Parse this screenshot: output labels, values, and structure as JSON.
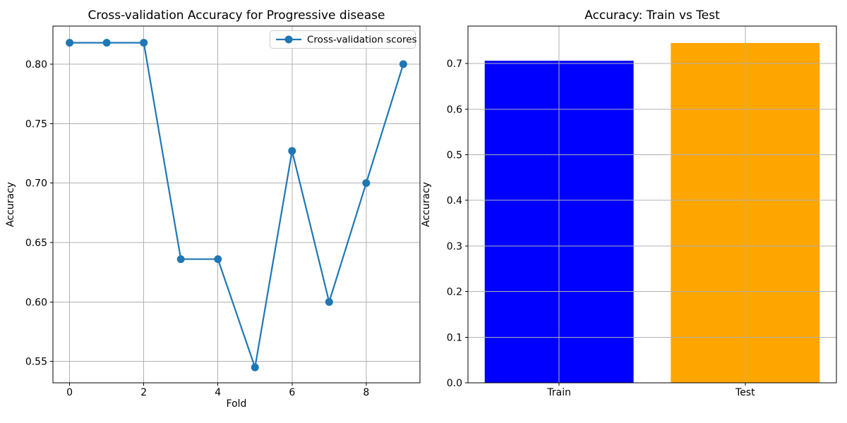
{
  "figure": {
    "background": "#ffffff",
    "axes_background": "#ffffff",
    "grid_color": "#b0b0b0",
    "spine_color": "#000000"
  },
  "chart_data": [
    {
      "type": "line",
      "title": "Cross-validation Accuracy for Progressive disease",
      "xlabel": "Fold",
      "ylabel": "Accuracy",
      "x": [
        0,
        1,
        2,
        3,
        4,
        5,
        6,
        7,
        8,
        9
      ],
      "series": [
        {
          "name": "Cross-validation scores",
          "color": "#1f77b4",
          "marker": "circle",
          "values": [
            0.818,
            0.818,
            0.818,
            0.636,
            0.636,
            0.545,
            0.727,
            0.6,
            0.7,
            0.8
          ]
        }
      ],
      "xlim": [
        -0.45,
        9.45
      ],
      "ylim": [
        0.532,
        0.832
      ],
      "xticks": [
        0,
        2,
        4,
        6,
        8
      ],
      "xtick_labels": [
        "0",
        "2",
        "4",
        "6",
        "8"
      ],
      "yticks": [
        0.55,
        0.6,
        0.65,
        0.7,
        0.75,
        0.8
      ],
      "ytick_labels": [
        "0.55",
        "0.60",
        "0.65",
        "0.70",
        "0.75",
        "0.80"
      ],
      "grid": true,
      "legend": {
        "location": "upper right",
        "entries": [
          "Cross-validation scores"
        ]
      }
    },
    {
      "type": "bar",
      "title": "Accuracy: Train vs Test",
      "xlabel": "",
      "ylabel": "Accuracy",
      "categories": [
        "Train",
        "Test"
      ],
      "values": [
        0.706,
        0.745
      ],
      "colors": [
        "#0000ff",
        "#ffa500"
      ],
      "bar_width": 0.8,
      "xlim": [
        -0.49,
        1.49
      ],
      "ylim": [
        0,
        0.782
      ],
      "yticks": [
        0.0,
        0.1,
        0.2,
        0.3,
        0.4,
        0.5,
        0.6,
        0.7
      ],
      "ytick_labels": [
        "0.0",
        "0.1",
        "0.2",
        "0.3",
        "0.4",
        "0.5",
        "0.6",
        "0.7"
      ],
      "grid": true,
      "legend": null
    }
  ]
}
